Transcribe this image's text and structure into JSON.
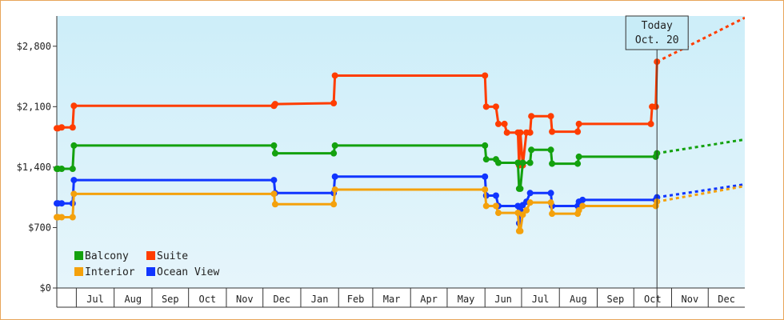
{
  "chart_data": {
    "type": "line",
    "step": true,
    "title": "",
    "xlabel": "",
    "ylabel": "",
    "ylim": [
      0,
      3150
    ],
    "xlim": [
      "2012-06-15",
      "2013-12-31"
    ],
    "y_ticks": [
      {
        "value": 0,
        "label": "$0"
      },
      {
        "value": 700,
        "label": "$700"
      },
      {
        "value": 1400,
        "label": "$1,400"
      },
      {
        "value": 2100,
        "label": "$2,100"
      },
      {
        "value": 2800,
        "label": "$2,800"
      }
    ],
    "x_month_ticks": [
      {
        "date": "2012-07-01",
        "label": "Jul"
      },
      {
        "date": "2012-08-01",
        "label": "Aug"
      },
      {
        "date": "2012-09-01",
        "label": "Sep"
      },
      {
        "date": "2012-10-01",
        "label": "Oct"
      },
      {
        "date": "2012-11-01",
        "label": "Nov"
      },
      {
        "date": "2012-12-01",
        "label": "Dec"
      },
      {
        "date": "2013-01-01",
        "label": "Jan"
      },
      {
        "date": "2013-02-01",
        "label": "Feb"
      },
      {
        "date": "2013-03-01",
        "label": "Mar"
      },
      {
        "date": "2013-04-01",
        "label": "Apr"
      },
      {
        "date": "2013-05-01",
        "label": "May"
      },
      {
        "date": "2013-06-01",
        "label": "Jun"
      },
      {
        "date": "2013-07-01",
        "label": "Jul"
      },
      {
        "date": "2013-08-01",
        "label": "Aug"
      },
      {
        "date": "2013-09-01",
        "label": "Sep"
      },
      {
        "date": "2013-10-01",
        "label": "Oct"
      },
      {
        "date": "2013-11-01",
        "label": "Nov"
      },
      {
        "date": "2013-12-01",
        "label": "Dec"
      }
    ],
    "today": {
      "date": "2013-10-20",
      "line1": "Today",
      "line2": "Oct. 20"
    },
    "grid": false,
    "legend": "bottom-left",
    "background_gradient": [
      "#cdeef9",
      "#e6f5fb"
    ],
    "series": [
      {
        "name": "Suite",
        "color": "#ff3d00",
        "points": [
          [
            "2012-06-15",
            1850
          ],
          [
            "2012-06-16",
            1850
          ],
          [
            "2012-06-19",
            1860
          ],
          [
            "2012-06-28",
            1860
          ],
          [
            "2012-06-29",
            2110
          ],
          [
            "2012-12-10",
            2110
          ],
          [
            "2012-12-11",
            2130
          ],
          [
            "2013-01-28",
            2140
          ],
          [
            "2013-01-29",
            2460
          ],
          [
            "2013-06-01",
            2460
          ],
          [
            "2013-06-02",
            2100
          ],
          [
            "2013-06-10",
            2100
          ],
          [
            "2013-06-12",
            1900
          ],
          [
            "2013-06-17",
            1900
          ],
          [
            "2013-06-19",
            1800
          ],
          [
            "2013-06-28",
            1800
          ],
          [
            "2013-06-29",
            1420
          ],
          [
            "2013-06-30",
            1800
          ],
          [
            "2013-07-02",
            1420
          ],
          [
            "2013-07-05",
            1800
          ],
          [
            "2013-07-08",
            1800
          ],
          [
            "2013-07-09",
            1990
          ],
          [
            "2013-07-25",
            1990
          ],
          [
            "2013-07-26",
            1810
          ],
          [
            "2013-08-16",
            1810
          ],
          [
            "2013-08-17",
            1900
          ],
          [
            "2013-10-15",
            1900
          ],
          [
            "2013-10-16",
            2100
          ],
          [
            "2013-10-19",
            2100
          ],
          [
            "2013-10-20",
            2620
          ]
        ],
        "forecast": [
          [
            "2013-10-20",
            2620
          ],
          [
            "2013-12-31",
            3130
          ]
        ]
      },
      {
        "name": "Balcony",
        "color": "#13a10e",
        "points": [
          [
            "2012-06-15",
            1380
          ],
          [
            "2012-06-16",
            1380
          ],
          [
            "2012-06-19",
            1380
          ],
          [
            "2012-06-28",
            1380
          ],
          [
            "2012-06-29",
            1650
          ],
          [
            "2012-12-10",
            1650
          ],
          [
            "2012-12-11",
            1560
          ],
          [
            "2013-01-28",
            1560
          ],
          [
            "2013-01-29",
            1650
          ],
          [
            "2013-06-01",
            1650
          ],
          [
            "2013-06-02",
            1490
          ],
          [
            "2013-06-10",
            1490
          ],
          [
            "2013-06-12",
            1450
          ],
          [
            "2013-06-28",
            1450
          ],
          [
            "2013-06-29",
            1150
          ],
          [
            "2013-06-30",
            1150
          ],
          [
            "2013-07-02",
            1450
          ],
          [
            "2013-07-08",
            1450
          ],
          [
            "2013-07-09",
            1600
          ],
          [
            "2013-07-25",
            1600
          ],
          [
            "2013-07-26",
            1440
          ],
          [
            "2013-08-16",
            1440
          ],
          [
            "2013-08-17",
            1520
          ],
          [
            "2013-10-19",
            1520
          ],
          [
            "2013-10-20",
            1560
          ]
        ],
        "forecast": [
          [
            "2013-10-20",
            1560
          ],
          [
            "2013-12-31",
            1720
          ]
        ]
      },
      {
        "name": "Ocean View",
        "color": "#1035ff",
        "points": [
          [
            "2012-06-15",
            980
          ],
          [
            "2012-06-16",
            980
          ],
          [
            "2012-06-19",
            980
          ],
          [
            "2012-06-28",
            980
          ],
          [
            "2012-06-29",
            1250
          ],
          [
            "2012-12-10",
            1250
          ],
          [
            "2012-12-11",
            1100
          ],
          [
            "2013-01-28",
            1100
          ],
          [
            "2013-01-29",
            1290
          ],
          [
            "2013-06-01",
            1290
          ],
          [
            "2013-06-02",
            1070
          ],
          [
            "2013-06-10",
            1070
          ],
          [
            "2013-06-12",
            950
          ],
          [
            "2013-06-28",
            950
          ],
          [
            "2013-06-29",
            750
          ],
          [
            "2013-06-30",
            900
          ],
          [
            "2013-07-02",
            960
          ],
          [
            "2013-07-05",
            1000
          ],
          [
            "2013-07-08",
            1100
          ],
          [
            "2013-07-25",
            1100
          ],
          [
            "2013-07-26",
            950
          ],
          [
            "2013-08-16",
            950
          ],
          [
            "2013-08-17",
            1000
          ],
          [
            "2013-08-20",
            1020
          ],
          [
            "2013-10-19",
            1020
          ],
          [
            "2013-10-20",
            1050
          ]
        ],
        "forecast": [
          [
            "2013-10-20",
            1050
          ],
          [
            "2013-12-31",
            1200
          ]
        ]
      },
      {
        "name": "Interior",
        "color": "#f4a10c",
        "points": [
          [
            "2012-06-15",
            820
          ],
          [
            "2012-06-16",
            820
          ],
          [
            "2012-06-19",
            820
          ],
          [
            "2012-06-28",
            820
          ],
          [
            "2012-06-29",
            1090
          ],
          [
            "2012-12-10",
            1090
          ],
          [
            "2012-12-11",
            970
          ],
          [
            "2013-01-28",
            970
          ],
          [
            "2013-01-29",
            1140
          ],
          [
            "2013-06-01",
            1140
          ],
          [
            "2013-06-02",
            950
          ],
          [
            "2013-06-10",
            950
          ],
          [
            "2013-06-12",
            870
          ],
          [
            "2013-06-28",
            870
          ],
          [
            "2013-06-29",
            660
          ],
          [
            "2013-06-30",
            660
          ],
          [
            "2013-07-02",
            850
          ],
          [
            "2013-07-05",
            900
          ],
          [
            "2013-07-08",
            990
          ],
          [
            "2013-07-25",
            990
          ],
          [
            "2013-07-26",
            860
          ],
          [
            "2013-08-16",
            860
          ],
          [
            "2013-08-17",
            900
          ],
          [
            "2013-08-20",
            950
          ],
          [
            "2013-10-19",
            950
          ],
          [
            "2013-10-20",
            1000
          ]
        ],
        "forecast": [
          [
            "2013-10-20",
            1000
          ],
          [
            "2013-12-31",
            1180
          ]
        ]
      }
    ],
    "legend_items": [
      {
        "name": "Balcony",
        "color": "#13a10e"
      },
      {
        "name": "Suite",
        "color": "#ff3d00"
      },
      {
        "name": "Interior",
        "color": "#f4a10c"
      },
      {
        "name": "Ocean View",
        "color": "#1035ff"
      }
    ]
  }
}
